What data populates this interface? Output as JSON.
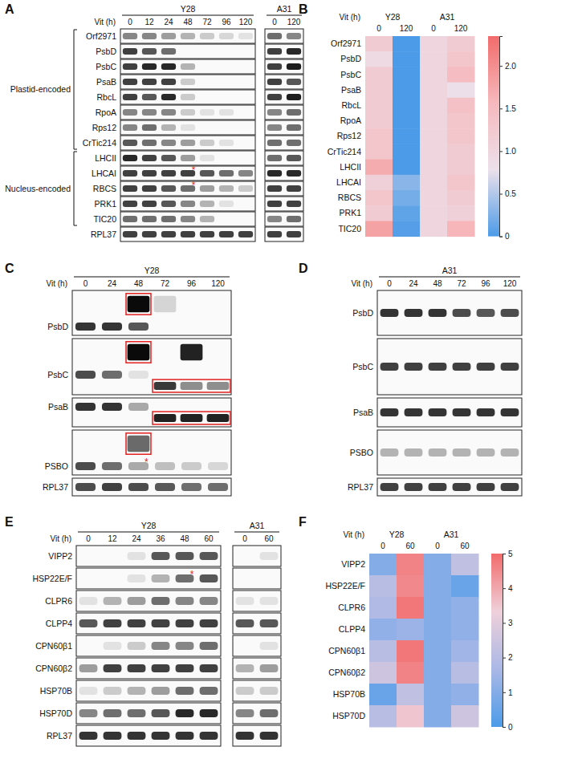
{
  "blots": [
    {
      "label": "A",
      "x_label": "Vit (h)",
      "groups": [
        {
          "name": "Y28",
          "lanes": [
            "0",
            "12",
            "24",
            "48",
            "72",
            "96",
            "120"
          ]
        },
        {
          "name": "A31",
          "lanes": [
            "0",
            "120"
          ]
        }
      ],
      "sections": [
        {
          "name": "Plastid-encoded",
          "rows": [
            {
              "name": "Orf2971",
              "values": [
                0.5,
                0.5,
                0.4,
                0.3,
                0.2,
                0.15,
                0.1,
                0.6,
                0.5
              ]
            },
            {
              "name": "PsbD",
              "values": [
                0.8,
                0.7,
                0.6,
                0,
                0,
                0,
                0,
                0.8,
                0.9
              ]
            },
            {
              "name": "PsbC",
              "values": [
                0.8,
                0.9,
                0.9,
                0.3,
                0,
                0,
                0,
                0.8,
                0.95
              ]
            },
            {
              "name": "PsaB",
              "values": [
                0.8,
                0.8,
                0.8,
                0.2,
                0,
                0,
                0,
                0.8,
                0.7
              ]
            },
            {
              "name": "RbcL",
              "values": [
                0.8,
                0.7,
                0.9,
                0.2,
                0,
                0,
                0,
                0.8,
                0.95
              ]
            },
            {
              "name": "RpoA",
              "values": [
                0.5,
                0.5,
                0.5,
                0.2,
                0.1,
                0.1,
                0,
                0.5,
                0.6
              ]
            },
            {
              "name": "Rps12",
              "values": [
                0.5,
                0.6,
                0.3,
                0.1,
                0,
                0,
                0,
                0.5,
                0.6
              ]
            },
            {
              "name": "CrTic214",
              "values": [
                0.7,
                0.6,
                0.5,
                0.4,
                0.2,
                0.1,
                0,
                0.6,
                0.6
              ]
            }
          ]
        },
        {
          "name": "Nucleus-encoded",
          "rows": [
            {
              "name": "LHCII",
              "values": [
                0.9,
                0.8,
                0.7,
                0.4,
                0.1,
                0,
                0,
                0.6,
                0.7
              ]
            },
            {
              "name": "LHCAI",
              "values": [
                0.8,
                0.8,
                0.8,
                0.8,
                0.7,
                0.6,
                0.5,
                0.9,
                0.9
              ],
              "asterisk": {
                "text": "*",
                "lane": "48"
              }
            },
            {
              "name": "RBCS",
              "values": [
                0.8,
                0.8,
                0.7,
                0.6,
                0.4,
                0.3,
                0.2,
                0.8,
                0.8
              ],
              "asterisk": {
                "text": "*",
                "lane": "48"
              }
            },
            {
              "name": "PRK1",
              "values": [
                0.8,
                0.8,
                0.7,
                0.5,
                0.3,
                0.1,
                0,
                0.8,
                0.8
              ]
            },
            {
              "name": "TIC20",
              "values": [
                0.6,
                0.6,
                0.6,
                0.5,
                0.3,
                0,
                0,
                0.5,
                0.6
              ]
            }
          ]
        }
      ],
      "control": {
        "name": "RPL37",
        "values": [
          0.8,
          0.8,
          0.8,
          0.8,
          0.8,
          0.8,
          0.8,
          0.8,
          0.8
        ]
      }
    },
    {
      "label": "C",
      "x_label": "Vit (h)",
      "groups": [
        {
          "name": "Y28",
          "lanes": [
            "0",
            "24",
            "48",
            "72",
            "96",
            "120"
          ]
        }
      ],
      "sections": [
        {
          "name": null,
          "rows": [
            {
              "name": "PsbD",
              "values": [
                0.85,
                0.85,
                0.7,
                0,
                0,
                0
              ],
              "shifted": [
                {
                  "direction": "up",
                  "values": [
                    0,
                    0,
                    1,
                    0.15,
                    0,
                    0
                  ],
                  "highlight": [
                    "48",
                    "48"
                  ]
                }
              ]
            },
            {
              "name": "PsbC",
              "values": [
                0.75,
                0.6,
                0.1,
                0,
                0,
                0
              ],
              "shifted": [
                {
                  "direction": "up",
                  "values": [
                    0,
                    0,
                    1,
                    0,
                    0.9,
                    0
                  ],
                  "highlight": [
                    "48",
                    "48"
                  ]
                },
                {
                  "direction": "down",
                  "values": [
                    0,
                    0,
                    0,
                    0.8,
                    0.45,
                    0.45
                  ],
                  "highlight": [
                    "72",
                    "120"
                  ]
                }
              ]
            },
            {
              "name": "PsaB",
              "values": [
                0.85,
                0.85,
                0.35,
                0,
                0,
                0
              ],
              "shifted": [
                {
                  "direction": "down",
                  "values": [
                    0,
                    0,
                    0,
                    0.9,
                    0.9,
                    0.9
                  ],
                  "highlight": [
                    "72",
                    "120"
                  ]
                }
              ]
            },
            {
              "name": "PSBO",
              "values": [
                0.75,
                0.6,
                0.35,
                0.25,
                0.2,
                0.15
              ],
              "shifted": [
                {
                  "direction": "up",
                  "values": [
                    0,
                    0,
                    0.6,
                    0,
                    0,
                    0
                  ],
                  "highlight": [
                    "48",
                    "48"
                  ]
                }
              ],
              "asterisk": {
                "text": "*",
                "lane": "48"
              }
            }
          ]
        }
      ],
      "control": {
        "name": "RPL37",
        "values": [
          0.75,
          0.8,
          0.75,
          0.7,
          0.6,
          0.6
        ]
      }
    },
    {
      "label": "D",
      "x_label": "Vit (h)",
      "groups": [
        {
          "name": "A31",
          "lanes": [
            "0",
            "24",
            "48",
            "72",
            "96",
            "120"
          ]
        }
      ],
      "sections": [
        {
          "name": null,
          "rows": [
            {
              "name": "PsbD",
              "values": [
                0.85,
                0.85,
                0.85,
                0.75,
                0.7,
                0.75
              ]
            },
            {
              "name": "PsbC",
              "values": [
                0.8,
                0.8,
                0.8,
                0.8,
                0.8,
                0.8
              ]
            },
            {
              "name": "PsaB",
              "values": [
                0.85,
                0.85,
                0.85,
                0.85,
                0.85,
                0.85
              ]
            },
            {
              "name": "PSBO",
              "values": [
                0.3,
                0.3,
                0.3,
                0.3,
                0.3,
                0.3
              ]
            }
          ]
        }
      ],
      "control": {
        "name": "RPL37",
        "values": [
          0.8,
          0.8,
          0.8,
          0.8,
          0.8,
          0.8
        ]
      }
    },
    {
      "label": "E",
      "x_label": "Vit (h)",
      "groups": [
        {
          "name": "Y28",
          "lanes": [
            "0",
            "12",
            "24",
            "36",
            "48",
            "60"
          ]
        },
        {
          "name": "A31",
          "lanes": [
            "0",
            "60"
          ]
        }
      ],
      "sections": [
        {
          "name": null,
          "rows": [
            {
              "name": "VIPP2",
              "values": [
                0,
                0,
                0.1,
                0.7,
                0.7,
                0.7,
                0,
                0.1
              ]
            },
            {
              "name": "HSP22E/F",
              "values": [
                0,
                0,
                0.1,
                0.3,
                0.6,
                0.7,
                0,
                0
              ],
              "asterisk": {
                "text": "*",
                "lane": "48"
              }
            },
            {
              "name": "CLPR6",
              "values": [
                0.1,
                0.3,
                0.4,
                0.6,
                0.5,
                0.5,
                0.1,
                0.1
              ]
            },
            {
              "name": "CLPP4",
              "values": [
                0.7,
                0.8,
                0.8,
                0.8,
                0.8,
                0.8,
                0.7,
                0.7
              ]
            },
            {
              "name": "CPN60β1",
              "values": [
                0,
                0.1,
                0.2,
                0.5,
                0.5,
                0.6,
                0,
                0.1
              ]
            },
            {
              "name": "CPN60β2",
              "values": [
                0.4,
                0.8,
                0.8,
                0.8,
                0.8,
                0.8,
                0.3,
                0.4
              ]
            },
            {
              "name": "HSP70B",
              "values": [
                0.1,
                0.2,
                0.3,
                0.4,
                0.6,
                0.6,
                0.2,
                0.2
              ]
            },
            {
              "name": "HSP70D",
              "values": [
                0.5,
                0.6,
                0.6,
                0.7,
                0.9,
                0.9,
                0.5,
                0.6
              ]
            }
          ]
        }
      ],
      "control": {
        "name": "RPL37",
        "values": [
          0.85,
          0.85,
          0.85,
          0.85,
          0.85,
          0.85,
          0.85,
          0.85
        ]
      }
    }
  ],
  "chart_data": [
    {
      "type": "heatmap",
      "label": "B",
      "x_label": "Vit (h)",
      "groups": [
        {
          "name": "Y28",
          "categories": [
            "0",
            "120"
          ]
        },
        {
          "name": "A31",
          "categories": [
            "0",
            "120"
          ]
        }
      ],
      "rows": [
        "Orf2971",
        "PsbD",
        "PsbC",
        "PsaB",
        "RbcL",
        "RpoA",
        "Rps12",
        "CrTic214",
        "LHCII",
        "LHCAI",
        "RBCS",
        "PRK1",
        "TIC20"
      ],
      "values": [
        [
          1.2,
          0,
          1.0,
          1.2
        ],
        [
          0.9,
          0,
          1.0,
          1.3
        ],
        [
          1.2,
          0,
          1.0,
          1.5
        ],
        [
          1.2,
          0,
          1.0,
          0.8
        ],
        [
          1.2,
          0,
          1.0,
          1.4
        ],
        [
          1.2,
          0,
          1.0,
          1.3
        ],
        [
          1.3,
          0,
          1.0,
          1.3
        ],
        [
          1.3,
          0,
          1.0,
          1.2
        ],
        [
          1.7,
          0,
          1.0,
          1.2
        ],
        [
          1.1,
          0.3,
          1.0,
          1.3
        ],
        [
          1.3,
          0.2,
          1.0,
          1.2
        ],
        [
          1.2,
          0.1,
          1.0,
          1.1
        ],
        [
          1.8,
          0.05,
          1.0,
          1.6
        ]
      ],
      "colorbar": {
        "range": [
          0,
          2.35
        ],
        "ticks": [
          0,
          0.5,
          {
            "value": 1,
            "label": "1.0"
          },
          1.5,
          {
            "value": 2,
            "label": "2.0"
          }
        ],
        "colors": [
          "#4c9be8",
          "#ece0ea",
          "#f6b9bd",
          "#f26b6b"
        ]
      }
    },
    {
      "type": "heatmap",
      "label": "F",
      "x_label": "Vit (h)",
      "groups": [
        {
          "name": "Y28",
          "categories": [
            "0",
            "60"
          ]
        },
        {
          "name": "A31",
          "categories": [
            "0",
            "60"
          ]
        }
      ],
      "rows": [
        "VIPP2",
        "HSP22E/F",
        "CLPR6",
        "CLPP4",
        "CPN60β1",
        "CPN60β2",
        "HSP70B",
        "HSP70D"
      ],
      "values": [
        [
          1.0,
          4.6,
          1.0,
          2.2
        ],
        [
          2.0,
          4.5,
          1.0,
          0.5
        ],
        [
          1.8,
          4.8,
          1.0,
          1.2
        ],
        [
          1.2,
          1.4,
          1.0,
          1.2
        ],
        [
          2.0,
          4.8,
          1.0,
          1.5
        ],
        [
          2.5,
          4.6,
          1.0,
          2.0
        ],
        [
          0.5,
          2.2,
          1.0,
          1.2
        ],
        [
          2.0,
          3.5,
          1.0,
          2.5
        ]
      ],
      "colorbar": {
        "range": [
          0,
          5
        ],
        "ticks": [
          0,
          1,
          2,
          3,
          4,
          5
        ],
        "colors": [
          "#4c9be8",
          "#aab8e6",
          "#efd0da",
          "#f26b6b"
        ]
      }
    }
  ]
}
